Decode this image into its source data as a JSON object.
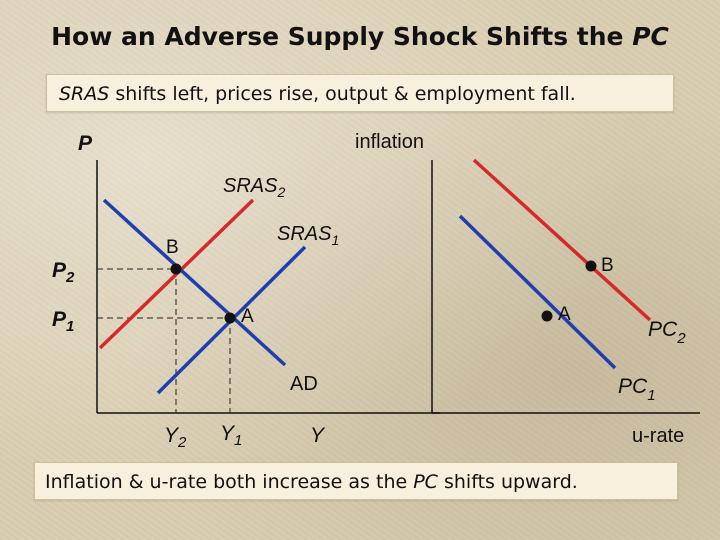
{
  "title": {
    "main": "How an Adverse Supply Shock Shifts the ",
    "emph": "PC"
  },
  "top_note": {
    "emph": "SRAS",
    "rest": " shifts left, prices rise, output & employment fall."
  },
  "bottom_note": {
    "pre": "Inflation & u-rate both increase as the ",
    "emph": "PC",
    "post": " shifts upward."
  },
  "left_graph": {
    "y_axis_label": "P",
    "x_axis_label": "Y",
    "curves": {
      "sras2": "SRAS",
      "sras2_sub": "2",
      "sras1": "SRAS",
      "sras1_sub": "1",
      "ad": "AD"
    },
    "points": {
      "b": "B",
      "a": "A"
    },
    "price_ticks": {
      "p2": "P",
      "p2_sub": "2",
      "p1": "P",
      "p1_sub": "1"
    },
    "output_ticks": {
      "y2": "Y",
      "y2_sub": "2",
      "y1": "Y",
      "y1_sub": "1"
    }
  },
  "right_graph": {
    "y_axis_label": "inflation",
    "x_axis_label": "u-rate",
    "curves": {
      "pc2": "PC",
      "pc2_sub": "2",
      "pc1": "PC",
      "pc1_sub": "1"
    },
    "points": {
      "b": "B",
      "a": "A"
    }
  },
  "colors": {
    "red_curve": "#d42a2a",
    "blue_curve": "#1f3fae",
    "axis": "#111111",
    "note_box": "#f6f0dc"
  }
}
